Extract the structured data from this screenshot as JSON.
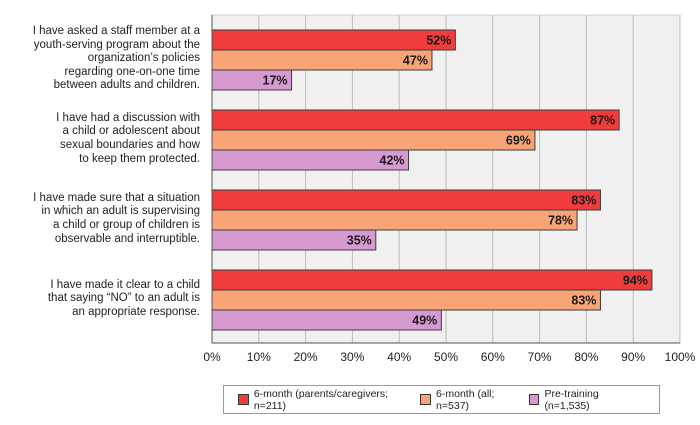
{
  "chart_data": {
    "type": "bar",
    "orientation": "horizontal",
    "categories": [
      "I have asked a staff member at a youth-serving program about the organization’s policies regarding one-on-one time between adults and children.",
      "I have had a discussion with a child or adolescent about sexual boundaries and how to keep them protected.",
      "I have made sure that a situation in which an adult is supervising a child or group of children is observable and interruptible.",
      "I have made it clear to a child that saying “NO” to an adult is an appropriate response."
    ],
    "category_lines": [
      [
        "I have asked a staff member at a",
        "youth-serving program about the",
        "organization’s policies",
        "regarding one-on-one time",
        "between adults and children."
      ],
      [
        "I have had a discussion with",
        "a child or adolescent about",
        "sexual boundaries and how",
        "to keep them protected."
      ],
      [
        "I have made sure that a situation",
        "in which an adult is supervising",
        "a child or group of children is",
        "observable and interruptible."
      ],
      [
        "I have made it clear to a child",
        "that saying “NO” to an adult is",
        "an appropriate response."
      ]
    ],
    "series": [
      {
        "name": "6-month (parents/caregivers; n=211)",
        "color": "#f03c3c",
        "values": [
          52,
          87,
          83,
          94
        ]
      },
      {
        "name": "6-month (all; n=537)",
        "color": "#f8a477",
        "values": [
          47,
          69,
          78,
          83
        ]
      },
      {
        "name": "Pre-training (n=1,535)",
        "color": "#d79ad0",
        "values": [
          17,
          42,
          35,
          49
        ]
      }
    ],
    "xlim": [
      0,
      100
    ],
    "xticks": [
      0,
      10,
      20,
      30,
      40,
      50,
      60,
      70,
      80,
      90,
      100
    ],
    "xtick_labels": [
      "0%",
      "10%",
      "20%",
      "30%",
      "40%",
      "50%",
      "60%",
      "70%",
      "80%",
      "90%",
      "100%"
    ],
    "value_suffix": "%",
    "plot_background": "#f0f0f0",
    "legend_position": "bottom"
  }
}
